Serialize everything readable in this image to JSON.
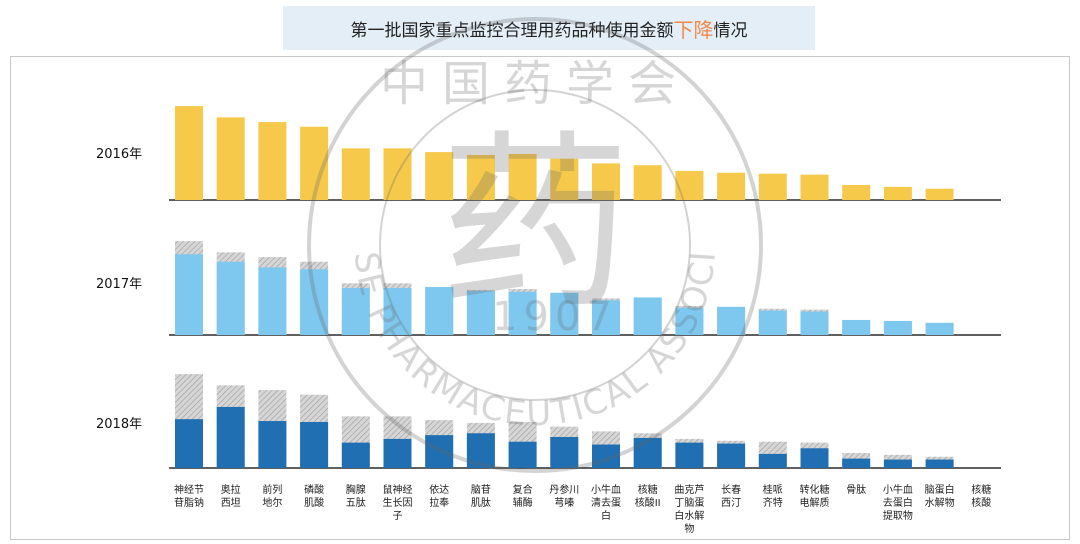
{
  "title": {
    "main": "第一批国家重点监控合理用药品种使用金额",
    "accent": "下降",
    "suffix": "情况"
  },
  "watermark": {
    "glyph": "药",
    "ring_cn": "中国药学会",
    "ring_en": "CHINESE PHARMACEUTICAL ASSOCIATION",
    "year": "1907"
  },
  "colors": {
    "y2016": "#f6c94b",
    "y2017_current": "#7ec8ef",
    "y2018_current": "#1f6fb2",
    "prior_hatch": "#b5b5b5"
  },
  "chart_data": [
    {
      "type": "bar",
      "title": "2016年",
      "categories": [
        "神经节苷脂钠",
        "奥拉西坦",
        "前列地尔",
        "磷酸肌酸",
        "胸腺五肽",
        "鼠神经生长因子",
        "依达拉奉",
        "脑苷肌肽",
        "复合辅酶",
        "丹参川芎嗪",
        "小牛血清去蛋白",
        "核糖核酸II",
        "曲克芦丁脑蛋白水解物",
        "长春西汀",
        "桂哌齐特",
        "转化糖电解质",
        "骨肽",
        "小牛血去蛋白提取物",
        "脑蛋白水解物",
        "核糖核酸"
      ],
      "series": [
        {
          "values": [
            100,
            88,
            83,
            78,
            55,
            55,
            51,
            48,
            49,
            44,
            39,
            37,
            31,
            29,
            28,
            27,
            16,
            14,
            12,
            0
          ]
        }
      ],
      "ylim": [
        0,
        115
      ]
    },
    {
      "type": "bar",
      "title": "2017年",
      "categories": [
        "神经节苷脂钠",
        "奥拉西坦",
        "前列地尔",
        "磷酸肌酸",
        "胸腺五肽",
        "鼠神经生长因子",
        "依达拉奉",
        "脑苷肌肽",
        "复合辅酶",
        "丹参川芎嗪",
        "小牛血清去蛋白",
        "核糖核酸II",
        "曲克芦丁脑蛋白水解物",
        "长春西汀",
        "桂哌齐特",
        "转化糖电解质",
        "骨肽",
        "小牛血去蛋白提取物",
        "脑蛋白水解物",
        "核糖核酸"
      ],
      "series": [
        {
          "values": [
            86,
            78,
            72,
            70,
            50,
            50,
            51,
            47,
            46,
            45,
            37,
            40,
            29,
            30,
            26,
            25,
            16,
            15,
            13,
            0
          ]
        },
        {
          "values": [
            100,
            88,
            83,
            78,
            55,
            55,
            51,
            48,
            49,
            44,
            39,
            37,
            31,
            29,
            28,
            27,
            16,
            14,
            12,
            0
          ]
        }
      ],
      "ylim": [
        0,
        115
      ]
    },
    {
      "type": "bar",
      "title": "2018年",
      "categories": [
        "神经节苷脂钠",
        "奥拉西坦",
        "前列地尔",
        "磷酸肌酸",
        "胸腺五肽",
        "鼠神经生长因子",
        "依达拉奉",
        "脑苷肌肽",
        "复合辅酶",
        "丹参川芎嗪",
        "小牛血清去蛋白",
        "核糖核酸II",
        "曲克芦丁脑蛋白水解物",
        "长春西汀",
        "桂哌齐特",
        "转化糖电解质",
        "骨肽",
        "小牛血去蛋白提取物",
        "脑蛋白水解物",
        "核糖核酸"
      ],
      "series": [
        {
          "values": [
            52,
            65,
            50,
            49,
            27,
            31,
            35,
            37,
            28,
            33,
            25,
            32,
            27,
            26,
            15,
            21,
            10,
            9,
            9,
            0
          ]
        },
        {
          "values": [
            100,
            88,
            83,
            78,
            55,
            55,
            51,
            48,
            49,
            44,
            39,
            37,
            31,
            29,
            28,
            27,
            16,
            14,
            12,
            0
          ]
        }
      ],
      "ylim": [
        0,
        115
      ]
    }
  ],
  "category_labels": [
    [
      "神经节",
      "苷脂钠"
    ],
    [
      "奥拉",
      "西坦"
    ],
    [
      "前列",
      "地尔"
    ],
    [
      "磷酸",
      "肌酸"
    ],
    [
      "胸腺",
      "五肽"
    ],
    [
      "鼠神经",
      "生长因",
      "子"
    ],
    [
      "依达",
      "拉奉"
    ],
    [
      "脑苷",
      "肌肽"
    ],
    [
      "复合",
      "辅酶"
    ],
    [
      "丹参川",
      "芎嗪"
    ],
    [
      "小牛血",
      "清去蛋",
      "白"
    ],
    [
      "核糖",
      "核酸II"
    ],
    [
      "曲克芦",
      "丁脑蛋",
      "白水解",
      "物"
    ],
    [
      "长春",
      "西汀"
    ],
    [
      "桂哌",
      "齐特"
    ],
    [
      "转化糖",
      "电解质"
    ],
    [
      "骨肽"
    ],
    [
      "小牛血",
      "去蛋白",
      "提取物"
    ],
    [
      "脑蛋白",
      "水解物"
    ],
    [
      "核糖",
      "核酸"
    ]
  ]
}
